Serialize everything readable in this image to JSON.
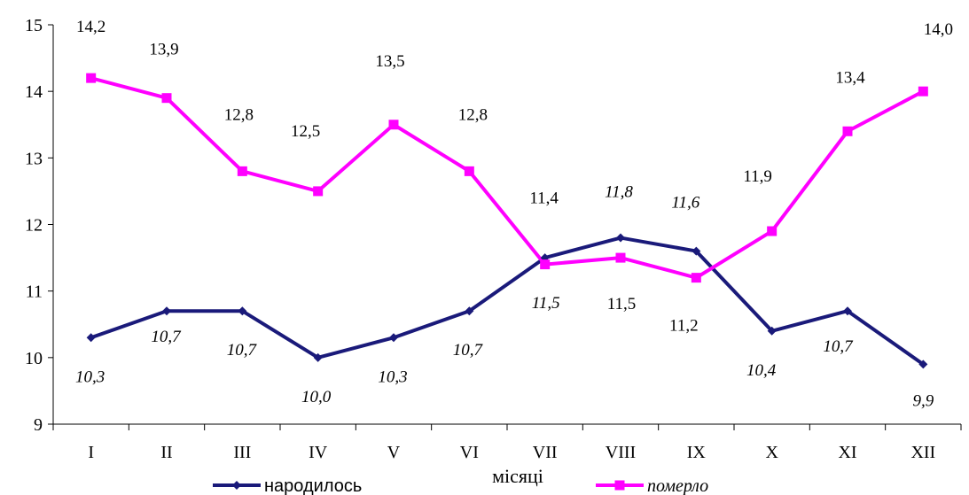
{
  "chart_data": {
    "type": "line",
    "categories": [
      "I",
      "II",
      "III",
      "IV",
      "V",
      "VI",
      "VII",
      "VIII",
      "IX",
      "X",
      "XI",
      "XII"
    ],
    "xlabel": "місяці",
    "ylim": [
      9,
      15
    ],
    "yticks": [
      9,
      10,
      11,
      12,
      13,
      14,
      15
    ],
    "grid": false,
    "legend_position": "bottom",
    "series": [
      {
        "name": "народилось",
        "color": "#1a1a7a",
        "marker": "diamond",
        "values": [
          10.3,
          10.7,
          10.7,
          10.0,
          10.3,
          10.7,
          11.5,
          11.8,
          11.6,
          10.4,
          10.7,
          9.9
        ],
        "labels": [
          "10,3",
          "10,7",
          "10,7",
          "10,0",
          "10,3",
          "10,7",
          "11,5",
          "11,8",
          "11,6",
          "10,4",
          "10,7",
          "9,9"
        ],
        "label_style": "italic"
      },
      {
        "name": "померло",
        "color": "#ff00ff",
        "marker": "square",
        "values": [
          14.2,
          13.9,
          12.8,
          12.5,
          13.5,
          12.8,
          11.4,
          11.5,
          11.2,
          11.9,
          13.4,
          14.0
        ],
        "labels": [
          "14,2",
          "13,9",
          "12,8",
          "12,5",
          "13,5",
          "12,8",
          "11,4",
          "11,5",
          "11,2",
          "11,9",
          "13,4",
          "14,0"
        ],
        "label_style": "normal"
      }
    ]
  }
}
